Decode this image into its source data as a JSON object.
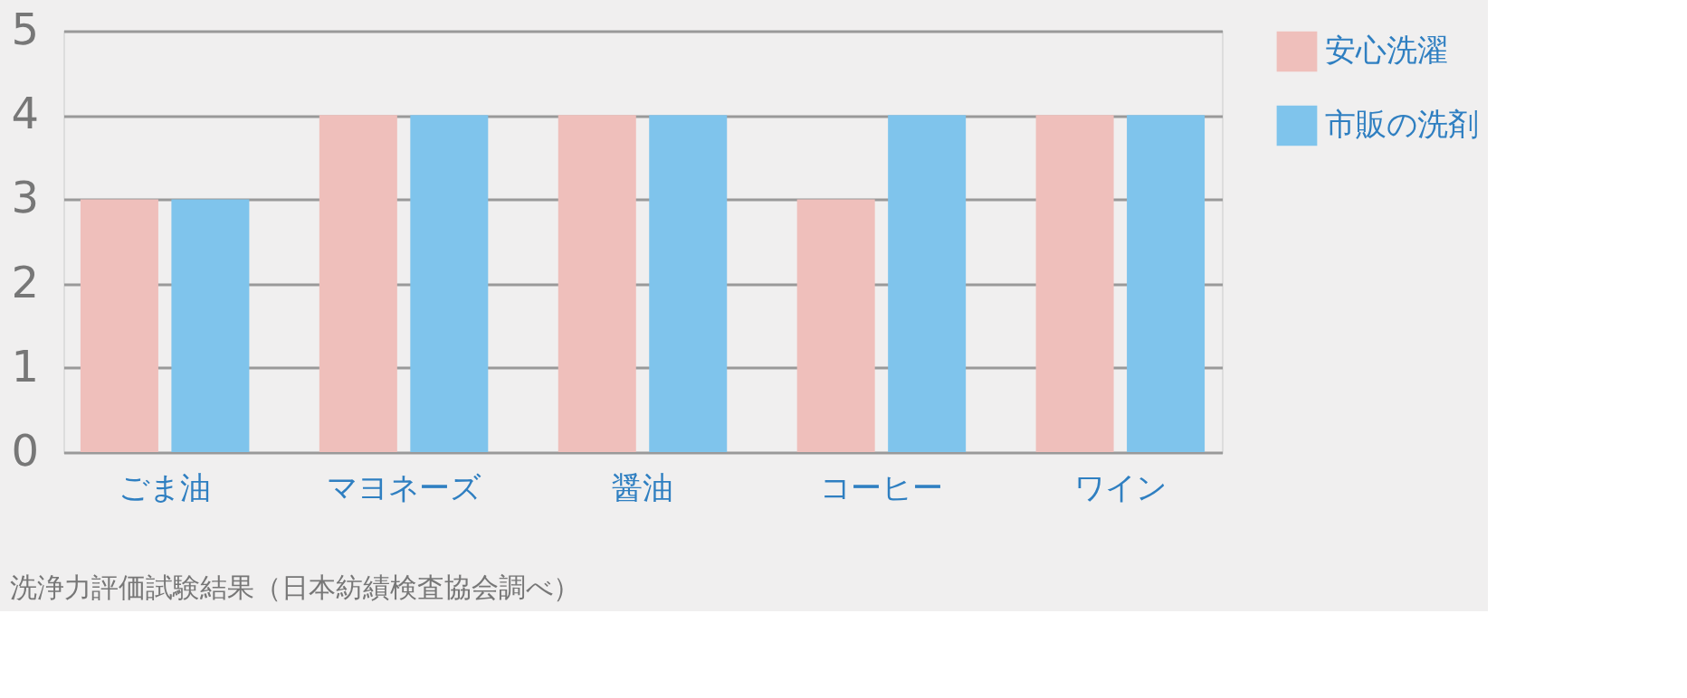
{
  "chart_data": {
    "type": "bar",
    "categories": [
      "ごま油",
      "マヨネーズ",
      "醤油",
      "コーヒー",
      "ワイン"
    ],
    "series": [
      {
        "name": "安心洗濯",
        "color": "#efbfbb",
        "values": [
          3,
          4,
          4,
          3,
          4
        ]
      },
      {
        "name": "市販の洗剤",
        "color": "#7fc4ec",
        "values": [
          3,
          4,
          4,
          4,
          4
        ]
      }
    ],
    "ylim": [
      0,
      5
    ],
    "yticks": [
      0,
      1,
      2,
      3,
      4,
      5
    ],
    "grid": "y",
    "legend": "top right",
    "annotations": [
      "洗浄力評価試験結果（日本紡績検査協会調べ）"
    ]
  }
}
